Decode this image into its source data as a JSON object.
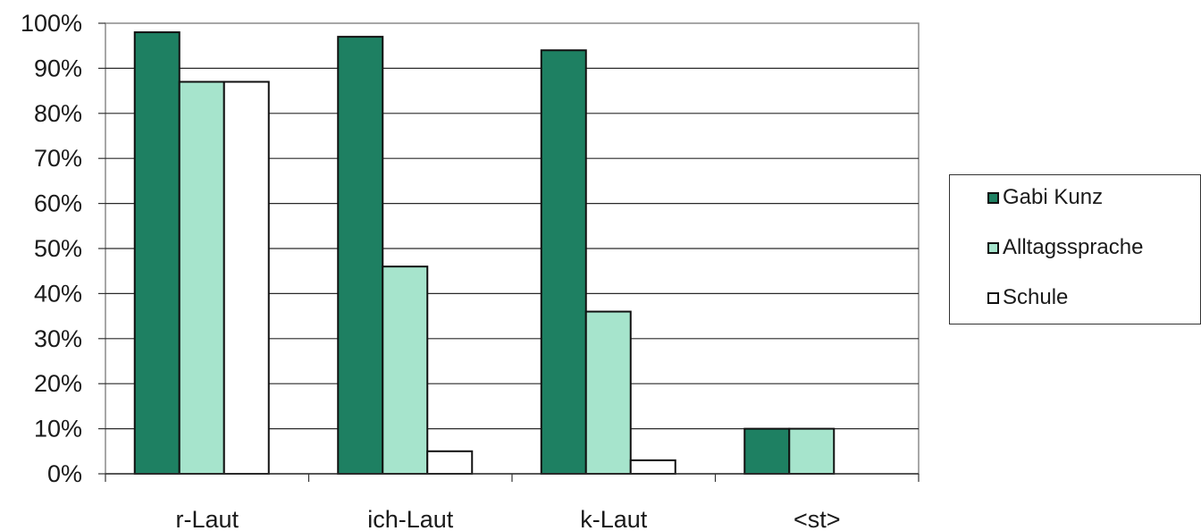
{
  "chart_data": {
    "type": "bar",
    "categories": [
      "r-Laut",
      "ich-Laut",
      "k-Laut",
      "<st>"
    ],
    "series": [
      {
        "name": "Gabi Kunz",
        "values": [
          98,
          97,
          94,
          10
        ],
        "color": "#1e8062"
      },
      {
        "name": "Alltagssprache",
        "values": [
          87,
          46,
          36,
          10
        ],
        "color": "#a6e4cc"
      },
      {
        "name": "Schule",
        "values": [
          87,
          5,
          3,
          0
        ],
        "color": "#ffffff"
      }
    ],
    "ylim": [
      0,
      100
    ],
    "yticks": [
      "0%",
      "10%",
      "20%",
      "30%",
      "40%",
      "50%",
      "60%",
      "70%",
      "80%",
      "90%",
      "100%"
    ],
    "grid": true,
    "legend": "right"
  }
}
